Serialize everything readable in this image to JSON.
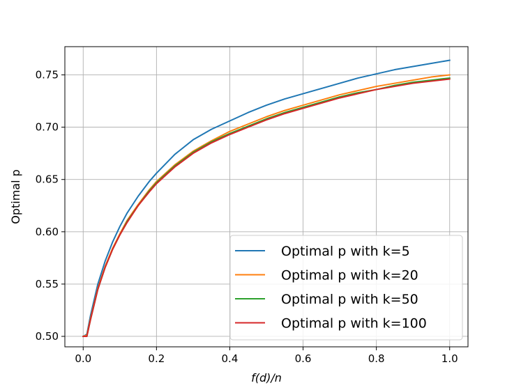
{
  "chart_data": {
    "type": "line",
    "title": "",
    "xlabel": "f(d)/n",
    "ylabel": "Optimal p",
    "xlim": [
      -0.05,
      1.05
    ],
    "ylim": [
      0.49,
      0.777
    ],
    "xticks": [
      0.0,
      0.2,
      0.4,
      0.6,
      0.8,
      1.0
    ],
    "xtick_labels": [
      "0.0",
      "0.2",
      "0.4",
      "0.6",
      "0.8",
      "1.0"
    ],
    "yticks": [
      0.5,
      0.55,
      0.6,
      0.65,
      0.7,
      0.75
    ],
    "ytick_labels": [
      "0.50",
      "0.55",
      "0.60",
      "0.65",
      "0.70",
      "0.75"
    ],
    "grid": true,
    "legend_position": "lower-right",
    "x": [
      0.0,
      0.01,
      0.02,
      0.04,
      0.06,
      0.08,
      0.1,
      0.12,
      0.15,
      0.18,
      0.2,
      0.25,
      0.3,
      0.35,
      0.4,
      0.45,
      0.5,
      0.55,
      0.6,
      0.65,
      0.7,
      0.75,
      0.8,
      0.85,
      0.9,
      0.95,
      1.0
    ],
    "series": [
      {
        "name": "Optimal p with k=5",
        "color": "#1f77b4",
        "values": [
          0.5,
          0.502,
          0.52,
          0.55,
          0.572,
          0.59,
          0.605,
          0.618,
          0.634,
          0.648,
          0.656,
          0.674,
          0.688,
          0.698,
          0.706,
          0.714,
          0.721,
          0.727,
          0.732,
          0.737,
          0.742,
          0.747,
          0.751,
          0.755,
          0.758,
          0.761,
          0.764
        ]
      },
      {
        "name": "Optimal p with k=20",
        "color": "#ff7f0e",
        "values": [
          0.5,
          0.501,
          0.517,
          0.546,
          0.567,
          0.584,
          0.598,
          0.611,
          0.626,
          0.64,
          0.648,
          0.664,
          0.677,
          0.687,
          0.696,
          0.703,
          0.71,
          0.716,
          0.721,
          0.726,
          0.731,
          0.735,
          0.739,
          0.742,
          0.745,
          0.748,
          0.75
        ]
      },
      {
        "name": "Optimal p with k=50",
        "color": "#2ca02c",
        "values": [
          0.5,
          0.5,
          0.516,
          0.545,
          0.566,
          0.583,
          0.597,
          0.61,
          0.625,
          0.639,
          0.647,
          0.663,
          0.676,
          0.686,
          0.694,
          0.701,
          0.708,
          0.714,
          0.719,
          0.724,
          0.729,
          0.733,
          0.736,
          0.74,
          0.743,
          0.745,
          0.747
        ]
      },
      {
        "name": "Optimal p with k=100",
        "color": "#d62728",
        "values": [
          0.5,
          0.5,
          0.516,
          0.545,
          0.566,
          0.583,
          0.597,
          0.609,
          0.625,
          0.638,
          0.646,
          0.662,
          0.675,
          0.685,
          0.693,
          0.7,
          0.707,
          0.713,
          0.718,
          0.723,
          0.728,
          0.732,
          0.736,
          0.739,
          0.742,
          0.744,
          0.746
        ]
      }
    ]
  }
}
